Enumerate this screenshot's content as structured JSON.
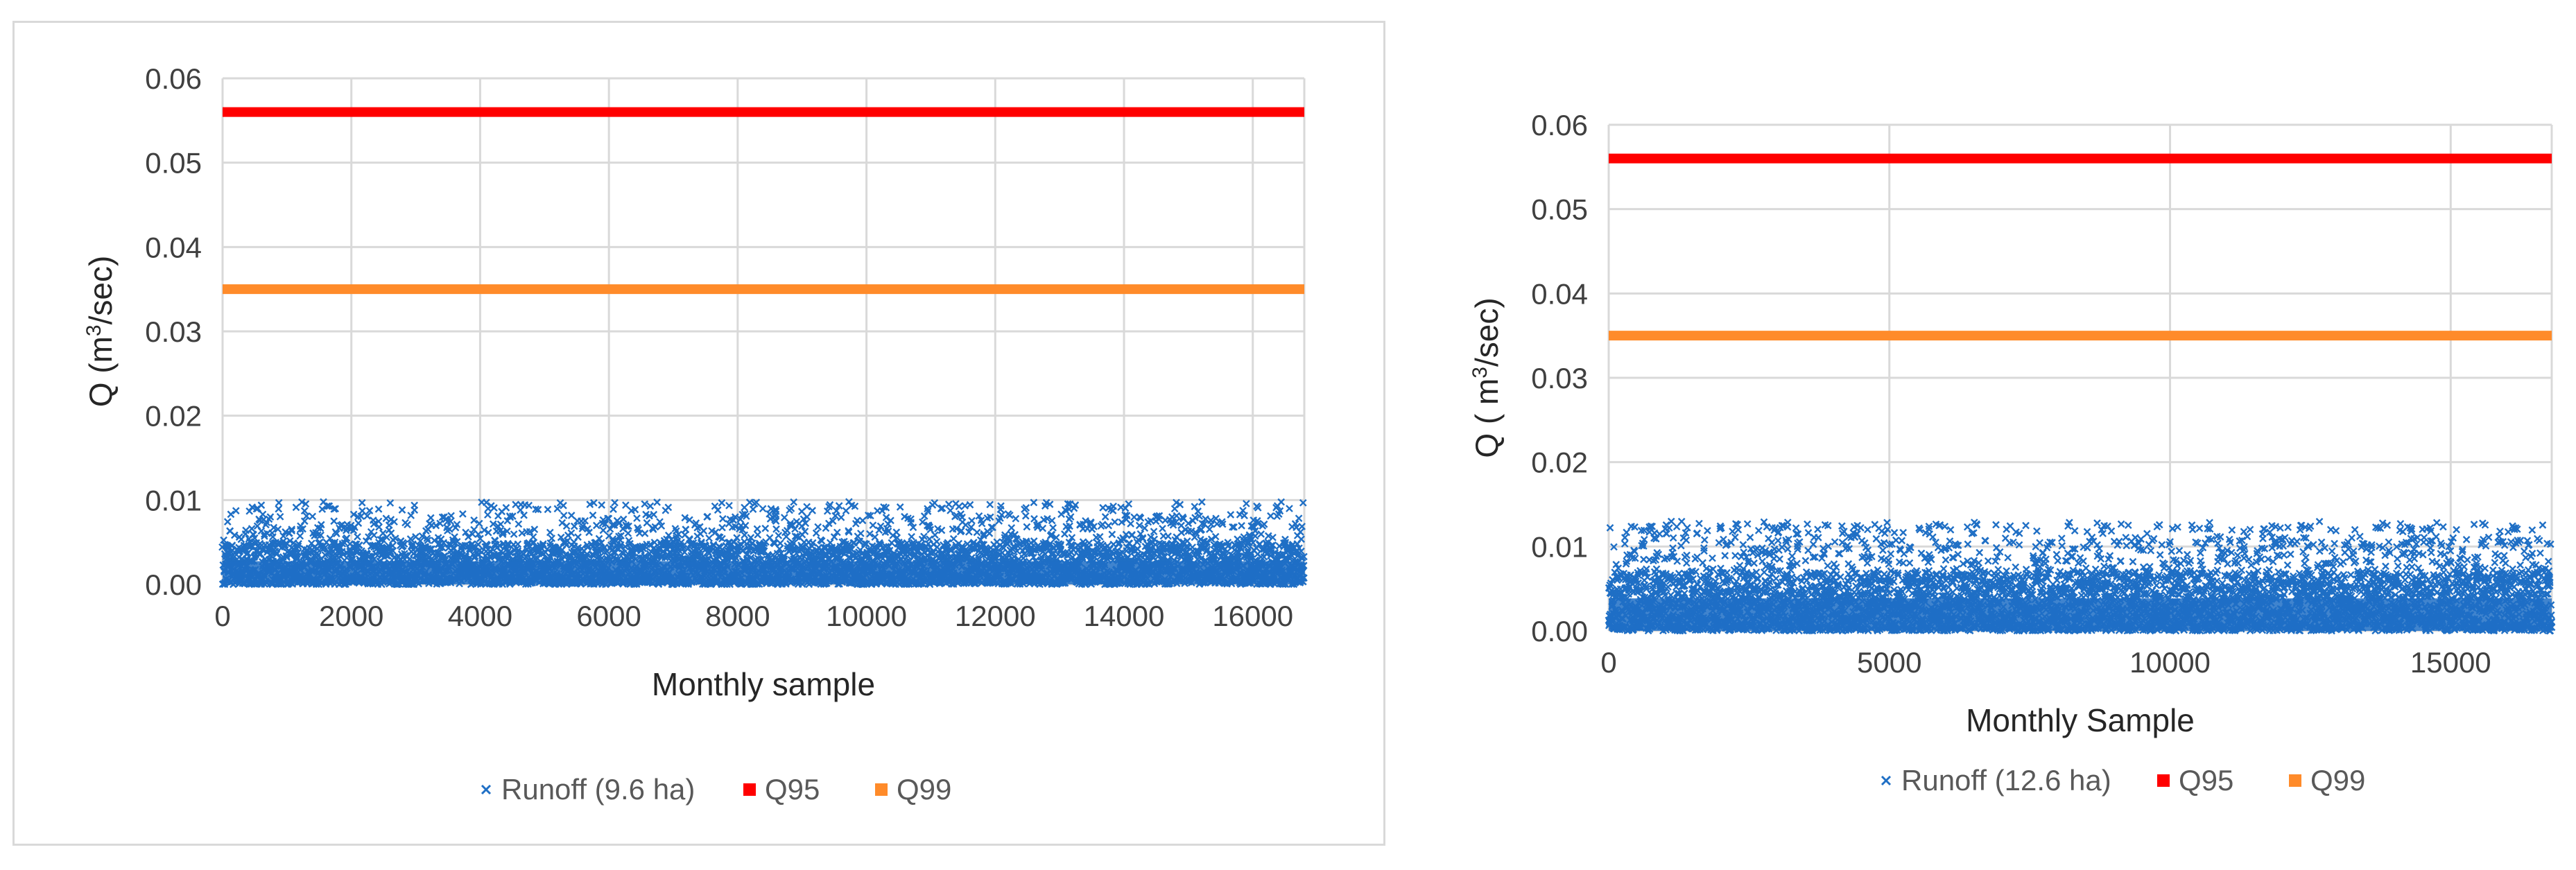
{
  "chart_data": [
    {
      "type": "scatter",
      "xlabel": "Monthly sample",
      "ylabel_main": "Q (m",
      "ylabel_sup": "3",
      "ylabel_tail": "/sec)",
      "xlim": [
        0,
        16800
      ],
      "ylim": [
        0,
        0.06
      ],
      "x_ticks": [
        0,
        2000,
        4000,
        6000,
        8000,
        10000,
        12000,
        14000,
        16000
      ],
      "y_ticks": [
        0,
        0.01,
        0.02,
        0.03,
        0.04,
        0.05,
        0.06
      ],
      "y_tick_labels": [
        "0.00",
        "0.01",
        "0.02",
        "0.03",
        "0.04",
        "0.05",
        "0.06"
      ],
      "grid": true,
      "legend_position": "bottom",
      "series": [
        {
          "name": "Runoff (9.6 ha)",
          "kind": "scatter",
          "marker": "x",
          "color": "#1f6fc5",
          "n_points": 16800,
          "y_min": 0.0,
          "y_max": 0.0098,
          "dense_band_top": 0.005
        },
        {
          "name": "Q95",
          "kind": "hline",
          "value": 0.056,
          "color": "#ff0000"
        },
        {
          "name": "Q99",
          "kind": "hline",
          "value": 0.035,
          "color": "#ff8b2a"
        }
      ]
    },
    {
      "type": "scatter",
      "xlabel": "Monthly Sample",
      "ylabel_main": "Q ( m",
      "ylabel_sup": "3",
      "ylabel_tail": "/sec)",
      "xlim": [
        0,
        16800
      ],
      "ylim": [
        0,
        0.06
      ],
      "x_ticks": [
        0,
        5000,
        10000,
        15000
      ],
      "y_ticks": [
        0,
        0.01,
        0.02,
        0.03,
        0.04,
        0.05,
        0.06
      ],
      "y_tick_labels": [
        "0.00",
        "0.01",
        "0.02",
        "0.03",
        "0.04",
        "0.05",
        "0.06"
      ],
      "grid": true,
      "legend_position": "bottom",
      "series": [
        {
          "name": "Runoff (12.6 ha)",
          "kind": "scatter",
          "marker": "x",
          "color": "#1f6fc5",
          "n_points": 16800,
          "y_min": 0.0,
          "y_max": 0.013,
          "dense_band_top": 0.007
        },
        {
          "name": "Q95",
          "kind": "hline",
          "value": 0.056,
          "color": "#ff0000"
        },
        {
          "name": "Q99",
          "kind": "hline",
          "value": 0.035,
          "color": "#ff8b2a"
        }
      ]
    }
  ]
}
